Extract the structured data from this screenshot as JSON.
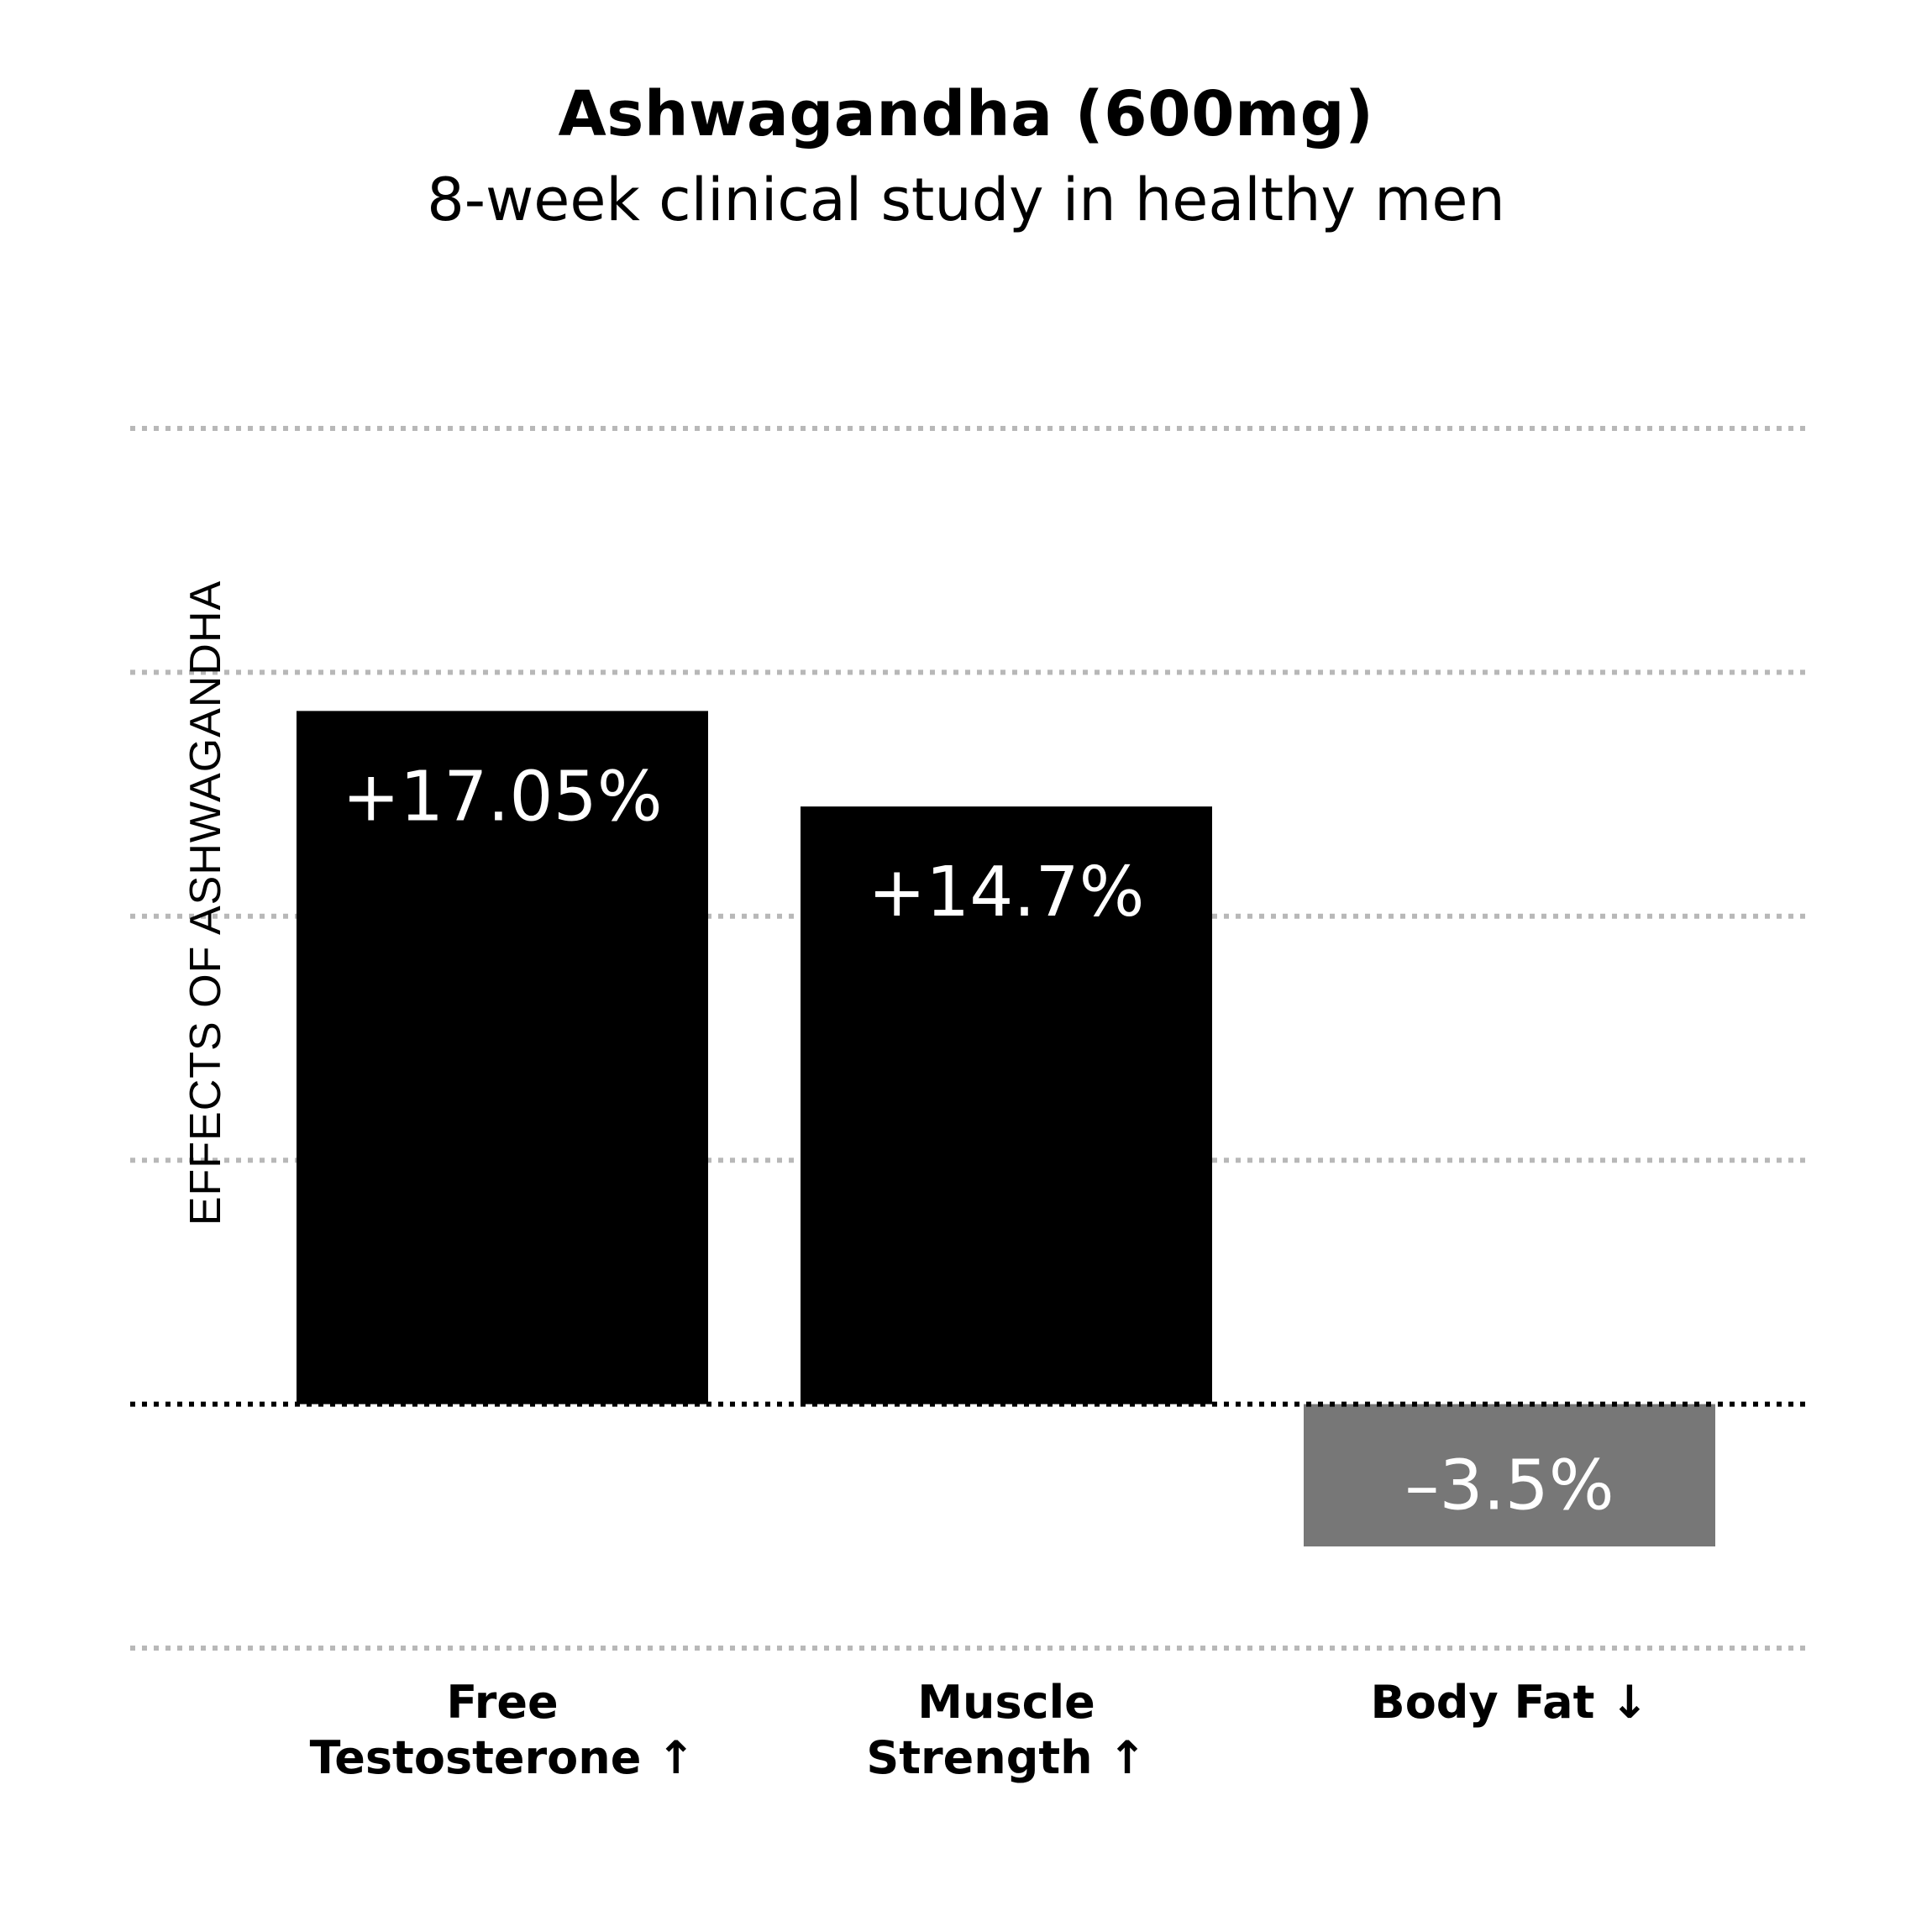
{
  "header": {
    "title": "Ashwagandha (600mg)",
    "subtitle": "8-week clinical study in healthy men"
  },
  "chart_data": {
    "type": "bar",
    "title": "Ashwagandha (600mg)",
    "subtitle": "8-week clinical study in healthy men",
    "xlabel": "",
    "ylabel": "EFFECTS OF ASHWAGANDHA",
    "categories": [
      {
        "lines": [
          "Free",
          "Testosterone ↑"
        ]
      },
      {
        "lines": [
          "Muscle",
          "Strength ↑"
        ]
      },
      {
        "lines": [
          "Body Fat ↓"
        ]
      }
    ],
    "values": [
      17.05,
      14.7,
      -3.5
    ],
    "value_labels": [
      "+17.05%",
      "+14.7%",
      "–3.5%"
    ],
    "bar_colors": [
      "#000000",
      "#000000",
      "#777777"
    ],
    "ylim": [
      -6,
      24
    ],
    "grid": true,
    "gridlines": [
      -6,
      0,
      6,
      12,
      18,
      24
    ],
    "tick_labels_shown": false,
    "legend": "none"
  }
}
